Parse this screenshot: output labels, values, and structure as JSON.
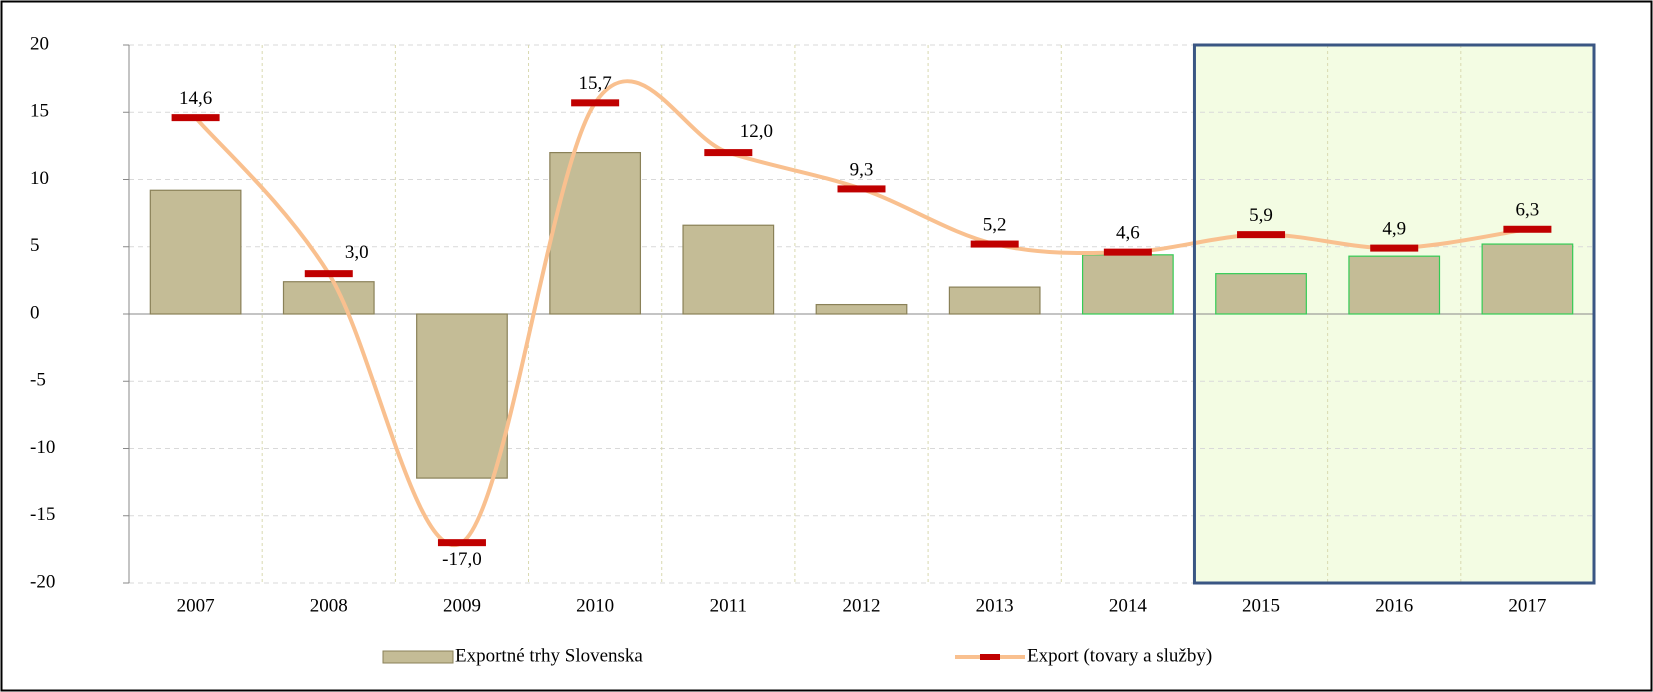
{
  "chart_data": {
    "type": "bar-line",
    "categories": [
      "2007",
      "2008",
      "2009",
      "2010",
      "2011",
      "2012",
      "2013",
      "2014",
      "2015",
      "2016",
      "2017"
    ],
    "series": [
      {
        "name": "Exportné trhy Slovenska",
        "type": "bar",
        "color": "#c4bc96",
        "values": [
          9.2,
          2.4,
          -12.2,
          12.0,
          6.6,
          0.7,
          2.0,
          4.4,
          3.0,
          4.3,
          5.2
        ]
      },
      {
        "name": "Export (tovary a služby)",
        "type": "line",
        "color": "#f9c08f",
        "marker_color": "#c00000",
        "values": [
          14.6,
          3.0,
          -17.0,
          15.7,
          12.0,
          9.3,
          5.2,
          4.6,
          5.9,
          4.9,
          6.3
        ],
        "value_labels": [
          "14,6",
          "3,0",
          "-17,0",
          "15,7",
          "12,0",
          "9,3",
          "5,2",
          "4,6",
          "5,9",
          "4,9",
          "6,3"
        ]
      }
    ],
    "ylim": [
      -20,
      20
    ],
    "yticks": [
      -20,
      -15,
      -10,
      -5,
      0,
      5,
      10,
      15,
      20
    ],
    "grid": true,
    "legend": "bottom"
  }
}
